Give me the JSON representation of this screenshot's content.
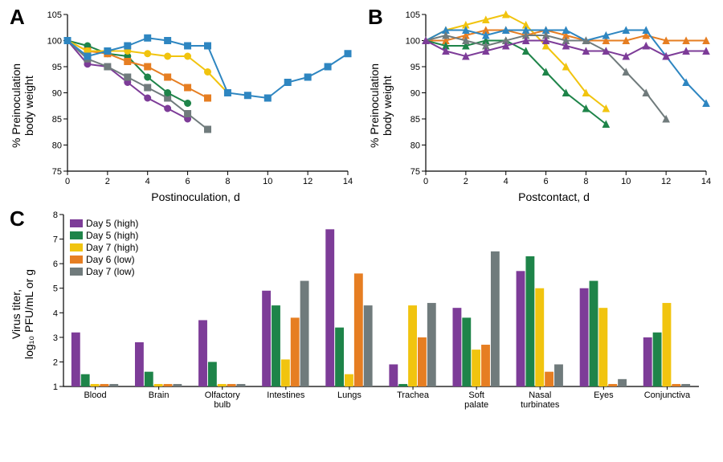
{
  "colors": {
    "purple": "#7d3c98",
    "green": "#1e8449",
    "yellow": "#f1c40f",
    "orange": "#e67e22",
    "gray": "#707b7c",
    "blue": "#2e86c1",
    "axis": "#000000",
    "bg": "#ffffff"
  },
  "panelA": {
    "label": "A",
    "ylabel": "% Preinoculation\nbody weight",
    "xlabel": "Postinoculation, d",
    "title_fontsize": 14,
    "xlim": [
      0,
      14
    ],
    "xtick_step": 2,
    "ylim": [
      75,
      105
    ],
    "ytick_step": 5,
    "marker_size": 4,
    "line_width": 2,
    "series": [
      {
        "color": "purple",
        "marker": "circle",
        "x": [
          0,
          1,
          2,
          3,
          4,
          5,
          6
        ],
        "y": [
          100,
          95.5,
          95,
          92,
          89,
          87,
          85
        ]
      },
      {
        "color": "gray",
        "marker": "square",
        "x": [
          0,
          1,
          2,
          3,
          4,
          5,
          6,
          7
        ],
        "y": [
          100,
          96.5,
          95,
          93,
          91,
          89,
          86,
          83
        ]
      },
      {
        "color": "green",
        "marker": "circle",
        "x": [
          0,
          1,
          2,
          3,
          4,
          5,
          6
        ],
        "y": [
          100,
          99,
          97.5,
          97,
          93,
          90,
          88
        ]
      },
      {
        "color": "orange",
        "marker": "square",
        "x": [
          0,
          1,
          2,
          3,
          4,
          5,
          6,
          7
        ],
        "y": [
          100,
          98,
          97.5,
          96,
          95,
          93,
          91,
          89
        ]
      },
      {
        "color": "yellow",
        "marker": "circle",
        "x": [
          0,
          1,
          2,
          3,
          4,
          5,
          6,
          7,
          8
        ],
        "y": [
          100,
          98,
          98,
          98,
          97.5,
          97,
          97,
          94,
          90
        ]
      },
      {
        "color": "blue",
        "marker": "square",
        "x": [
          0,
          1,
          2,
          3,
          4,
          5,
          6,
          7,
          8,
          9,
          10,
          11,
          12,
          13,
          14
        ],
        "y": [
          100,
          97,
          98,
          99,
          100.5,
          100,
          99,
          99,
          90,
          89.5,
          89,
          92,
          93,
          95,
          97.5
        ]
      }
    ]
  },
  "panelB": {
    "label": "B",
    "ylabel": "% Preinoculation\nbody weight",
    "xlabel": "Postcontact, d",
    "xlim": [
      0,
      14
    ],
    "xtick_step": 2,
    "ylim": [
      75,
      105
    ],
    "ytick_step": 5,
    "marker_size": 4,
    "line_width": 2,
    "series": [
      {
        "color": "yellow",
        "marker": "triangle",
        "x": [
          0,
          1,
          2,
          3,
          4,
          5,
          6,
          7,
          8,
          9
        ],
        "y": [
          100,
          102,
          103,
          104,
          105,
          103,
          99,
          95,
          90,
          87
        ]
      },
      {
        "color": "orange",
        "marker": "triangle",
        "x": [
          0,
          1,
          2,
          3,
          4,
          5,
          6,
          7,
          8,
          9,
          10,
          11,
          12,
          13,
          14
        ],
        "y": [
          100,
          100,
          101,
          102,
          102,
          101,
          102,
          101,
          100,
          100,
          100,
          101,
          100,
          100,
          100
        ]
      },
      {
        "color": "green",
        "marker": "triangle",
        "x": [
          0,
          1,
          2,
          3,
          4,
          5,
          6,
          7,
          8,
          9
        ],
        "y": [
          100,
          99,
          99,
          100,
          100,
          98,
          94,
          90,
          87,
          84
        ]
      },
      {
        "color": "blue",
        "marker": "triangle",
        "x": [
          0,
          1,
          2,
          3,
          4,
          5,
          6,
          7,
          8,
          9,
          10,
          11,
          12,
          13,
          14
        ],
        "y": [
          100,
          102,
          102,
          101,
          102,
          102,
          102,
          102,
          100,
          101,
          102,
          102,
          97,
          92,
          88
        ]
      },
      {
        "color": "gray",
        "marker": "triangle",
        "x": [
          0,
          1,
          2,
          3,
          4,
          5,
          6,
          7,
          8,
          9,
          10,
          11,
          12
        ],
        "y": [
          100,
          101,
          100,
          99,
          100,
          101,
          101,
          100,
          100,
          98,
          94,
          90,
          85
        ]
      },
      {
        "color": "purple",
        "marker": "triangle",
        "x": [
          0,
          1,
          2,
          3,
          4,
          5,
          6,
          7,
          8,
          9,
          10,
          11,
          12,
          13,
          14
        ],
        "y": [
          100,
          98,
          97,
          98,
          99,
          100,
          100,
          99,
          98,
          98,
          97,
          99,
          97,
          98,
          98
        ]
      }
    ]
  },
  "panelC": {
    "label": "C",
    "ylabel": "Virus titer,\nlog₁₀ PFU/mL or g",
    "ylim": [
      1,
      8
    ],
    "ytick_step": 1,
    "categories": [
      "Blood",
      "Brain",
      "Olfactory\nbulb",
      "Intestines",
      "Lungs",
      "Trachea",
      "Soft\npalate",
      "Nasal\nturbinates",
      "Eyes",
      "Conjunctiva"
    ],
    "bar_width": 0.14,
    "cluster_gap": 0.25,
    "legend": [
      {
        "color": "purple",
        "label": "Day 5 (high)"
      },
      {
        "color": "green",
        "label": "Day 5 (high)"
      },
      {
        "color": "yellow",
        "label": "Day 7  (high)"
      },
      {
        "color": "orange",
        "label": "Day 6 (low)"
      },
      {
        "color": "gray",
        "label": "Day 7 (low)"
      }
    ],
    "series": [
      {
        "color": "purple",
        "values": [
          3.2,
          2.8,
          3.7,
          4.9,
          7.4,
          1.9,
          4.2,
          5.7,
          5.0,
          3.0
        ]
      },
      {
        "color": "green",
        "values": [
          1.5,
          1.6,
          2.0,
          4.3,
          3.4,
          1.1,
          3.8,
          6.3,
          5.3,
          3.2
        ]
      },
      {
        "color": "yellow",
        "values": [
          1.1,
          1.1,
          1.1,
          2.1,
          1.5,
          4.3,
          2.5,
          5.0,
          4.2,
          4.4
        ]
      },
      {
        "color": "orange",
        "values": [
          1.1,
          1.1,
          1.1,
          3.8,
          5.6,
          3.0,
          2.7,
          1.6,
          1.1,
          1.1
        ]
      },
      {
        "color": "gray",
        "values": [
          1.1,
          1.1,
          1.1,
          5.3,
          4.3,
          4.4,
          6.5,
          1.9,
          1.3,
          1.1
        ]
      }
    ]
  }
}
